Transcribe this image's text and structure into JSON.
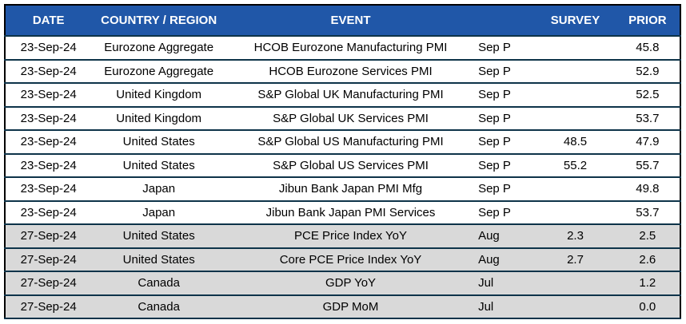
{
  "table": {
    "name": "economic-calendar",
    "colors": {
      "header_bg": "#2057A8",
      "header_text": "#ffffff",
      "shaded_row_bg": "#D9D9D9",
      "row_divider": "#0d3349",
      "outer_border": "#000000"
    },
    "columns": {
      "date": "DATE",
      "region": "COUNTRY / REGION",
      "event": "EVENT",
      "period": "",
      "survey": "SURVEY",
      "prior": "PRIOR"
    },
    "rows": [
      {
        "date": "23-Sep-24",
        "region": "Eurozone Aggregate",
        "event": "HCOB Eurozone Manufacturing PMI",
        "period": "Sep P",
        "survey": "",
        "prior": "45.8",
        "shaded": false
      },
      {
        "date": "23-Sep-24",
        "region": "Eurozone Aggregate",
        "event": "HCOB Eurozone Services PMI",
        "period": "Sep P",
        "survey": "",
        "prior": "52.9",
        "shaded": false
      },
      {
        "date": "23-Sep-24",
        "region": "United Kingdom",
        "event": "S&P Global UK Manufacturing PMI",
        "period": "Sep P",
        "survey": "",
        "prior": "52.5",
        "shaded": false
      },
      {
        "date": "23-Sep-24",
        "region": "United Kingdom",
        "event": "S&P Global UK Services PMI",
        "period": "Sep P",
        "survey": "",
        "prior": "53.7",
        "shaded": false
      },
      {
        "date": "23-Sep-24",
        "region": "United States",
        "event": "S&P Global US Manufacturing PMI",
        "period": "Sep P",
        "survey": "48.5",
        "prior": "47.9",
        "shaded": false
      },
      {
        "date": "23-Sep-24",
        "region": "United States",
        "event": "S&P Global US Services PMI",
        "period": "Sep P",
        "survey": "55.2",
        "prior": "55.7",
        "shaded": false
      },
      {
        "date": "23-Sep-24",
        "region": "Japan",
        "event": "Jibun Bank Japan PMI Mfg",
        "period": "Sep P",
        "survey": "",
        "prior": "49.8",
        "shaded": false
      },
      {
        "date": "23-Sep-24",
        "region": "Japan",
        "event": "Jibun Bank Japan PMI Services",
        "period": "Sep P",
        "survey": "",
        "prior": "53.7",
        "shaded": false
      },
      {
        "date": "27-Sep-24",
        "region": "United States",
        "event": "PCE Price Index YoY",
        "period": "Aug",
        "survey": "2.3",
        "prior": "2.5",
        "shaded": true
      },
      {
        "date": "27-Sep-24",
        "region": "United States",
        "event": "Core PCE Price Index YoY",
        "period": "Aug",
        "survey": "2.7",
        "prior": "2.6",
        "shaded": true
      },
      {
        "date": "27-Sep-24",
        "region": "Canada",
        "event": "GDP YoY",
        "period": "Jul",
        "survey": "",
        "prior": "1.2",
        "shaded": true
      },
      {
        "date": "27-Sep-24",
        "region": "Canada",
        "event": "GDP MoM",
        "period": "Jul",
        "survey": "",
        "prior": "0.0",
        "shaded": true
      }
    ]
  }
}
